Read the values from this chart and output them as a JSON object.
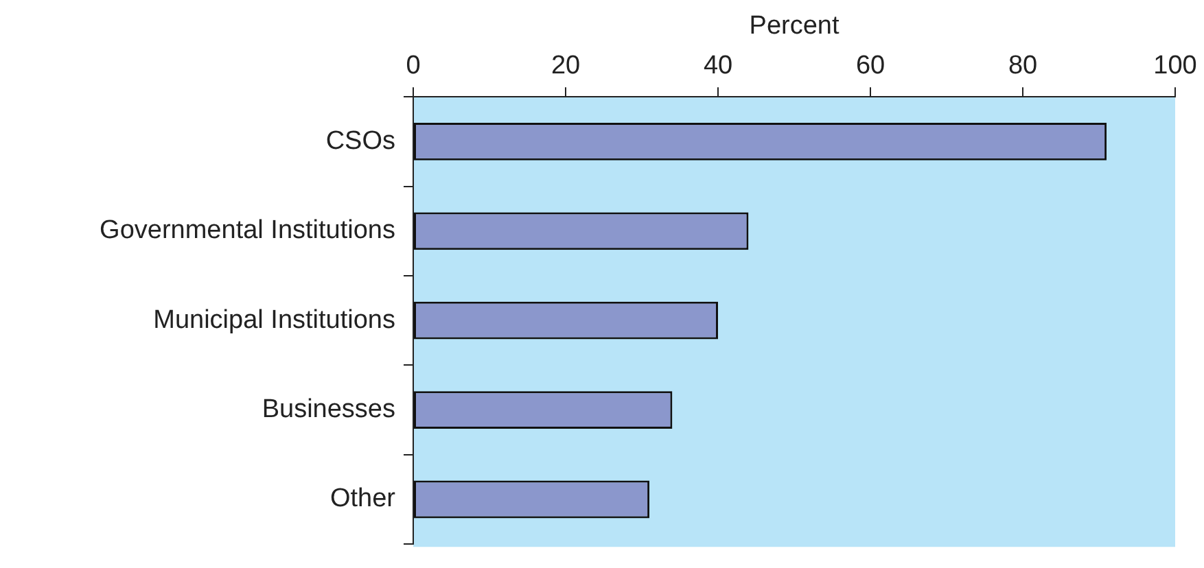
{
  "chart_data": {
    "type": "bar",
    "orientation": "horizontal",
    "xlabel": "Percent",
    "categories": [
      "CSOs",
      "Governmental Institutions",
      "Municipal Institutions",
      "Businesses",
      "Other"
    ],
    "values": [
      91,
      44,
      40,
      34,
      31
    ],
    "color": "#8b97cc",
    "xlim": [
      0,
      100
    ],
    "xticks": [
      0,
      20,
      40,
      60,
      80,
      100
    ],
    "grid": false,
    "legend": false
  }
}
